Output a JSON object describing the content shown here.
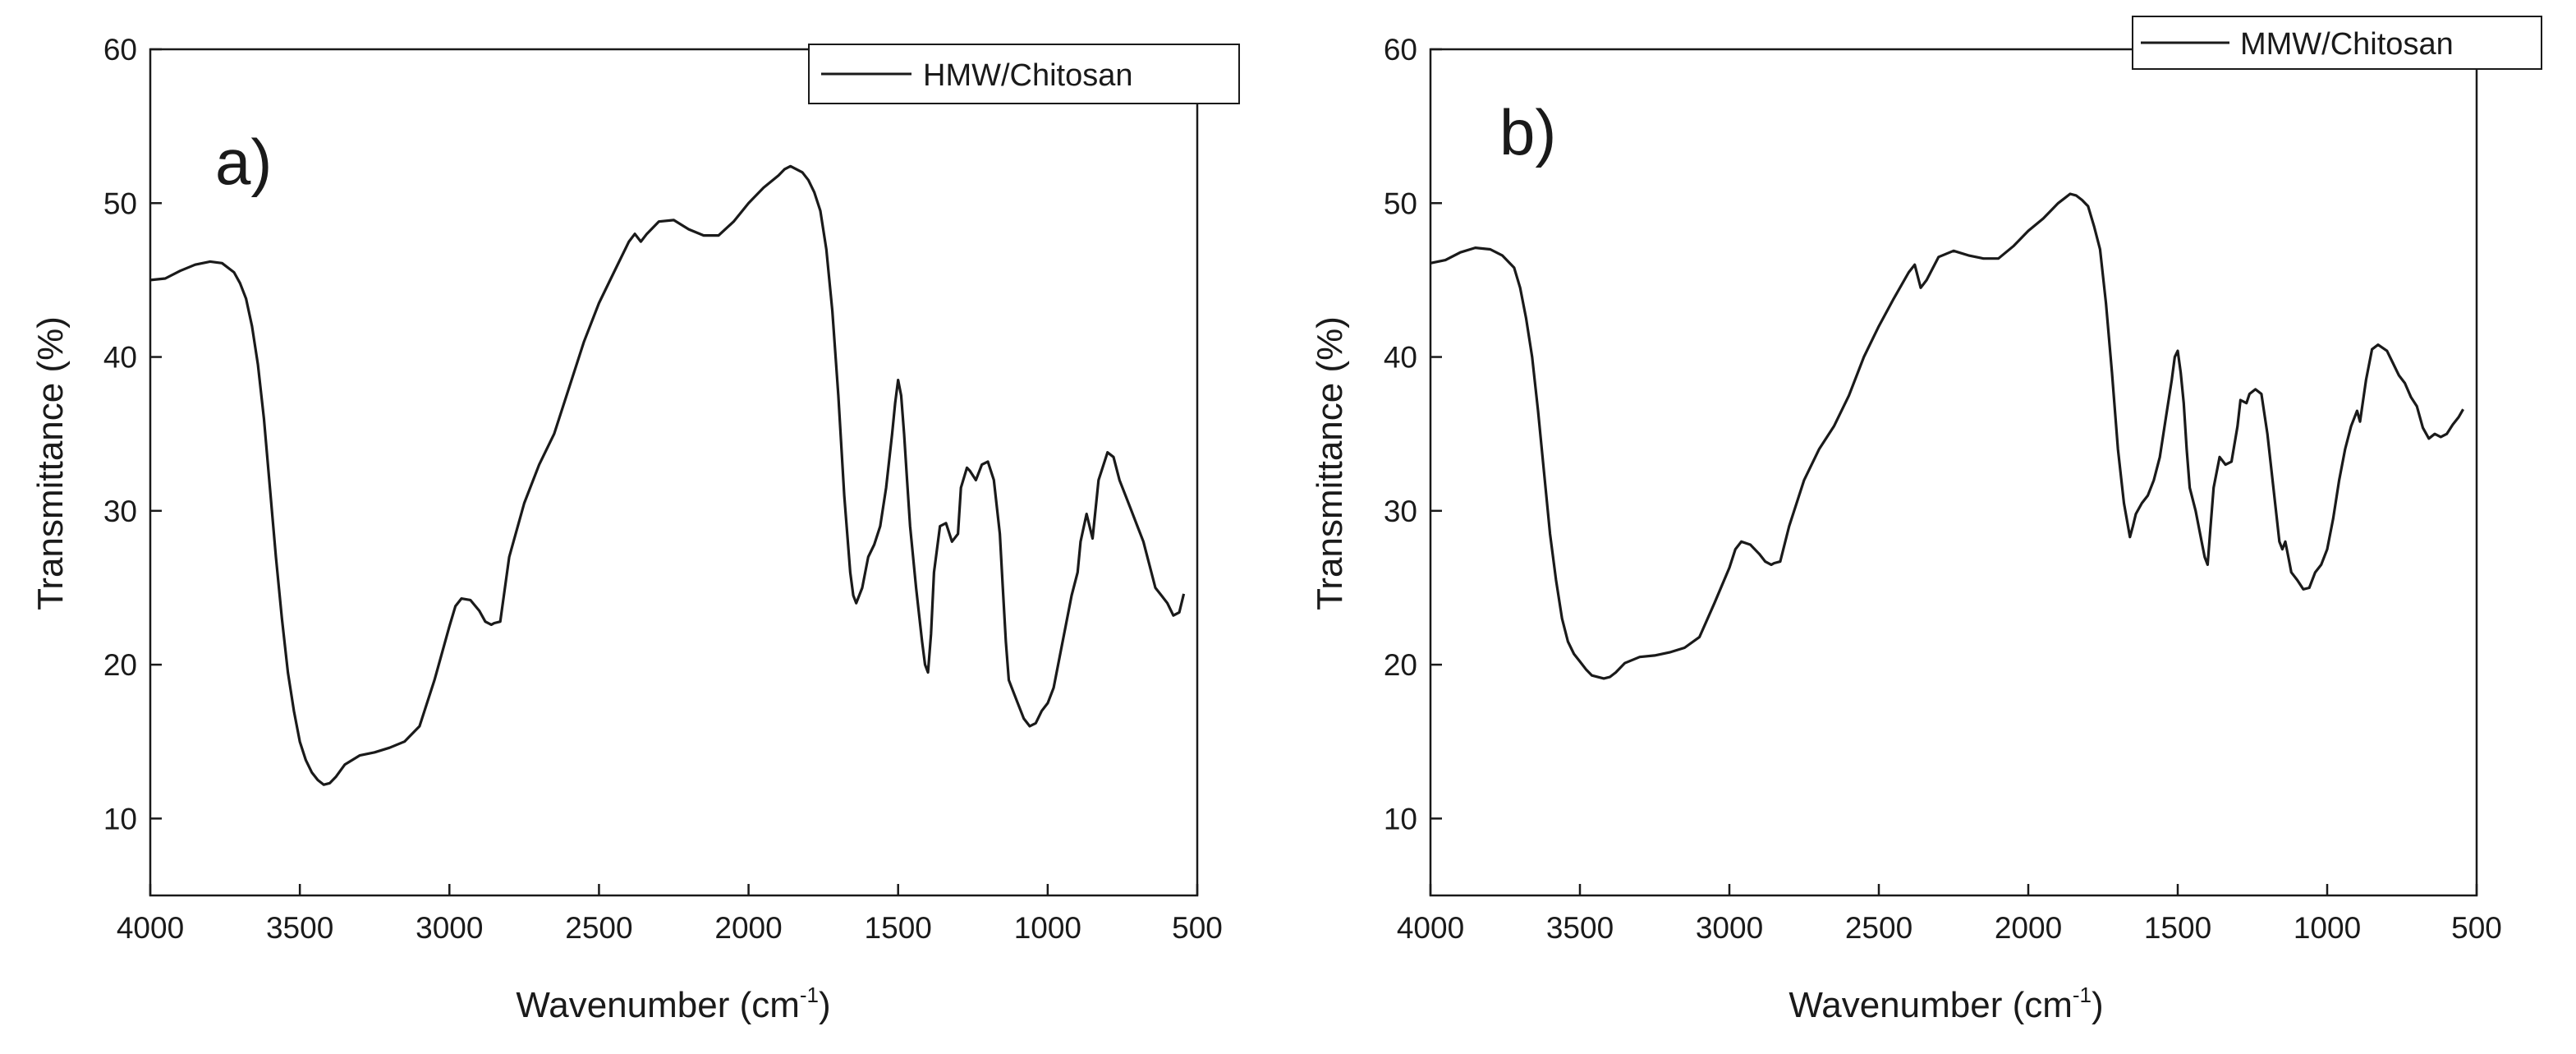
{
  "figure": {
    "background": "#ffffff",
    "line_color": "#1a1a1a"
  },
  "chart_data": [
    {
      "type": "line",
      "panel_label": "a)",
      "legend": [
        "HMW/Chitosan"
      ],
      "legend_position": "top-right",
      "xlabel": "Wavenumber (cm",
      "xlabel_sup": "-1",
      "xlabel_close": ")",
      "ylabel": "Transmittance (%)",
      "xlim": [
        4000,
        500
      ],
      "ylim": [
        5,
        60
      ],
      "x_ticks": [
        4000,
        3500,
        3000,
        2500,
        2000,
        1500,
        1000,
        500
      ],
      "y_ticks": [
        10,
        20,
        30,
        40,
        50,
        60
      ],
      "grid": false,
      "series": [
        {
          "name": "HMW/Chitosan",
          "x": [
            4000,
            3950,
            3900,
            3850,
            3800,
            3760,
            3720,
            3700,
            3680,
            3660,
            3640,
            3620,
            3600,
            3580,
            3560,
            3540,
            3520,
            3500,
            3480,
            3460,
            3440,
            3420,
            3400,
            3380,
            3350,
            3300,
            3250,
            3200,
            3150,
            3100,
            3050,
            3000,
            2980,
            2960,
            2930,
            2900,
            2880,
            2860,
            2850,
            2830,
            2800,
            2750,
            2700,
            2650,
            2600,
            2550,
            2500,
            2450,
            2400,
            2380,
            2360,
            2340,
            2300,
            2250,
            2200,
            2150,
            2100,
            2050,
            2000,
            1950,
            1900,
            1880,
            1860,
            1840,
            1820,
            1800,
            1780,
            1760,
            1740,
            1720,
            1700,
            1680,
            1660,
            1650,
            1640,
            1620,
            1600,
            1580,
            1560,
            1540,
            1520,
            1510,
            1500,
            1490,
            1480,
            1470,
            1460,
            1440,
            1420,
            1410,
            1400,
            1390,
            1380,
            1360,
            1340,
            1320,
            1300,
            1290,
            1270,
            1260,
            1240,
            1220,
            1200,
            1180,
            1160,
            1150,
            1140,
            1130,
            1120,
            1100,
            1080,
            1060,
            1040,
            1020,
            1000,
            980,
            960,
            940,
            920,
            900,
            890,
            870,
            850,
            830,
            800,
            780,
            760,
            740,
            720,
            700,
            680,
            660,
            640,
            620,
            600,
            580,
            560,
            545
          ],
          "y": [
            45.0,
            45.1,
            45.6,
            46.0,
            46.2,
            46.1,
            45.5,
            44.8,
            43.8,
            42.0,
            39.5,
            36.0,
            31.5,
            27.0,
            23.0,
            19.5,
            17.0,
            15.0,
            13.8,
            13.0,
            12.5,
            12.2,
            12.3,
            12.7,
            13.5,
            14.1,
            14.3,
            14.6,
            15.0,
            16.0,
            19.0,
            22.5,
            23.8,
            24.3,
            24.2,
            23.5,
            22.8,
            22.6,
            22.7,
            22.8,
            27.0,
            30.5,
            33.0,
            35.0,
            38.0,
            41.0,
            43.5,
            45.5,
            47.5,
            48.0,
            47.5,
            48.0,
            48.8,
            48.9,
            48.3,
            47.9,
            47.9,
            48.8,
            50.0,
            51.0,
            51.8,
            52.2,
            52.4,
            52.2,
            52.0,
            51.5,
            50.7,
            49.5,
            47.0,
            43.0,
            37.5,
            31.0,
            26.0,
            24.5,
            24.0,
            25.0,
            27.0,
            27.8,
            29.0,
            31.5,
            35.0,
            37.0,
            38.5,
            37.5,
            35.0,
            32.0,
            29.0,
            25.0,
            21.5,
            20.0,
            19.5,
            22.0,
            26.0,
            29.0,
            29.2,
            28.0,
            28.5,
            31.5,
            32.8,
            32.6,
            32.0,
            33.0,
            33.2,
            32.0,
            28.5,
            25.0,
            21.5,
            19.0,
            18.5,
            17.5,
            16.5,
            16.0,
            16.2,
            17.0,
            17.5,
            18.5,
            20.5,
            22.5,
            24.5,
            26.0,
            28.0,
            29.8,
            28.2,
            32.0,
            33.8,
            33.5,
            32.0,
            31.0,
            30.0,
            29.0,
            28.0,
            26.5,
            25.0,
            24.5,
            24.0,
            23.2,
            23.4,
            24.6
          ]
        }
      ]
    },
    {
      "type": "line",
      "panel_label": "b)",
      "legend": [
        "MMW/Chitosan"
      ],
      "legend_position": "top-right",
      "xlabel": "Wavenumber (cm",
      "xlabel_sup": "-1",
      "xlabel_close": ")",
      "ylabel": "Transmittance (%)",
      "xlim": [
        4000,
        500
      ],
      "ylim": [
        5,
        60
      ],
      "x_ticks": [
        4000,
        3500,
        3000,
        2500,
        2000,
        1500,
        1000,
        500
      ],
      "y_ticks": [
        10,
        20,
        30,
        40,
        50,
        60
      ],
      "grid": false,
      "series": [
        {
          "name": "MMW/Chitosan",
          "x": [
            4000,
            3950,
            3900,
            3850,
            3800,
            3760,
            3720,
            3700,
            3680,
            3660,
            3640,
            3620,
            3600,
            3580,
            3560,
            3540,
            3520,
            3500,
            3480,
            3460,
            3440,
            3420,
            3400,
            3380,
            3350,
            3300,
            3250,
            3200,
            3150,
            3100,
            3050,
            3000,
            2980,
            2960,
            2930,
            2900,
            2880,
            2860,
            2850,
            2830,
            2800,
            2750,
            2700,
            2650,
            2600,
            2550,
            2500,
            2450,
            2400,
            2380,
            2360,
            2340,
            2300,
            2250,
            2200,
            2150,
            2100,
            2050,
            2000,
            1950,
            1900,
            1880,
            1860,
            1840,
            1820,
            1800,
            1780,
            1760,
            1740,
            1720,
            1700,
            1680,
            1660,
            1650,
            1640,
            1620,
            1600,
            1580,
            1560,
            1540,
            1520,
            1510,
            1500,
            1490,
            1480,
            1470,
            1460,
            1440,
            1420,
            1410,
            1400,
            1390,
            1380,
            1360,
            1340,
            1320,
            1300,
            1290,
            1270,
            1260,
            1240,
            1220,
            1200,
            1180,
            1160,
            1150,
            1140,
            1130,
            1120,
            1100,
            1080,
            1060,
            1040,
            1020,
            1000,
            980,
            960,
            940,
            920,
            900,
            890,
            870,
            850,
            830,
            800,
            780,
            760,
            740,
            720,
            700,
            680,
            660,
            640,
            620,
            600,
            580,
            560,
            545
          ],
          "y": [
            46.1,
            46.3,
            46.8,
            47.1,
            47.0,
            46.6,
            45.8,
            44.5,
            42.5,
            40.0,
            36.5,
            32.5,
            28.5,
            25.5,
            23.0,
            21.5,
            20.7,
            20.2,
            19.7,
            19.3,
            19.2,
            19.1,
            19.2,
            19.5,
            20.1,
            20.5,
            20.6,
            20.8,
            21.1,
            21.8,
            24.0,
            26.3,
            27.5,
            28.0,
            27.8,
            27.2,
            26.7,
            26.5,
            26.6,
            26.7,
            29.0,
            32.0,
            34.0,
            35.5,
            37.5,
            40.0,
            42.0,
            43.8,
            45.5,
            46.0,
            44.5,
            45.0,
            46.5,
            46.9,
            46.6,
            46.4,
            46.4,
            47.2,
            48.2,
            49.0,
            50.0,
            50.3,
            50.6,
            50.5,
            50.2,
            49.8,
            48.5,
            47.0,
            43.5,
            39.0,
            34.0,
            30.5,
            28.3,
            29.0,
            29.8,
            30.5,
            31.0,
            32.0,
            33.5,
            36.0,
            38.5,
            40.0,
            40.4,
            39.0,
            37.0,
            34.0,
            31.5,
            30.0,
            28.0,
            27.0,
            26.5,
            29.0,
            31.5,
            33.5,
            33.0,
            33.2,
            35.5,
            37.2,
            37.0,
            37.6,
            37.9,
            37.6,
            35.0,
            31.5,
            28.0,
            27.5,
            28.0,
            27.0,
            26.0,
            25.5,
            24.9,
            25.0,
            26.0,
            26.5,
            27.5,
            29.5,
            32.0,
            34.0,
            35.5,
            36.5,
            35.8,
            38.5,
            40.5,
            40.8,
            40.4,
            39.6,
            38.8,
            38.3,
            37.4,
            36.8,
            35.4,
            34.7,
            35.0,
            34.8,
            35.0,
            35.6,
            36.1,
            36.6
          ]
        }
      ]
    }
  ]
}
